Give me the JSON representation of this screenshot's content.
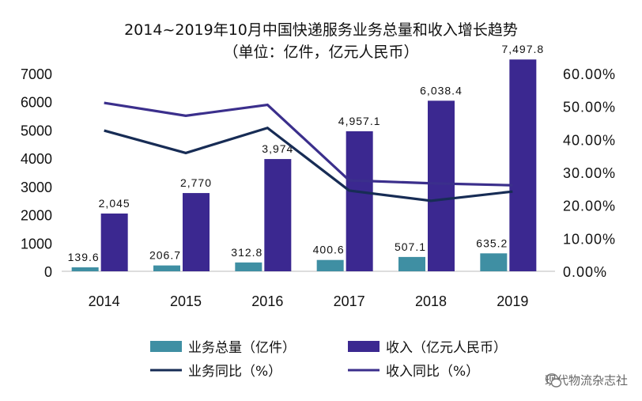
{
  "chart_data": {
    "type": "bar",
    "title": "2014~2019年10月中国快递服务业务总量和收入增长趋势",
    "subtitle": "（单位：亿件，亿元人民币）",
    "categories": [
      "2014",
      "2015",
      "2016",
      "2017",
      "2018",
      "2019"
    ],
    "ylim": [
      0,
      7000
    ],
    "y_ticks": [
      "0",
      "1000",
      "2000",
      "3000",
      "4000",
      "5000",
      "6000",
      "7000"
    ],
    "y2lim": [
      0,
      60
    ],
    "y2_ticks": [
      "0.00%",
      "10.00%",
      "20.00%",
      "30.00%",
      "40.00%",
      "50.00%",
      "60.00%"
    ],
    "grid": false,
    "legend_position": "bottom",
    "series": [
      {
        "name": "业务总量（亿件）",
        "kind": "bar",
        "axis": "left",
        "color": "#3f8fa3",
        "values": [
          139.6,
          206.7,
          312.8,
          400.6,
          507.1,
          635.2
        ],
        "labels": [
          "139.6",
          "206.7",
          "312.8",
          "400.6",
          "507.1",
          "635.2"
        ]
      },
      {
        "name": "收入（亿元人民币）",
        "kind": "bar",
        "axis": "left",
        "color": "#3b2890",
        "values": [
          2045,
          2770,
          3974,
          4957.1,
          6038.4,
          7497.8
        ],
        "labels": [
          "2,045",
          "2,770",
          "3,974",
          "4,957.1",
          "6,038.4",
          "7,497.8"
        ]
      },
      {
        "name": "业务同比（%）",
        "kind": "line",
        "axis": "right",
        "color": "#172c55",
        "values": [
          42.7,
          35.9,
          43.5,
          24.5,
          21.4,
          24.2
        ]
      },
      {
        "name": "收入同比（%）",
        "kind": "line",
        "axis": "right",
        "color": "#3b2f8c",
        "values": [
          51.1,
          47.2,
          50.5,
          27.6,
          26.7,
          26.1
        ]
      }
    ]
  },
  "watermark": {
    "text": "现代物流杂志社",
    "icon": "wechat-icon"
  }
}
